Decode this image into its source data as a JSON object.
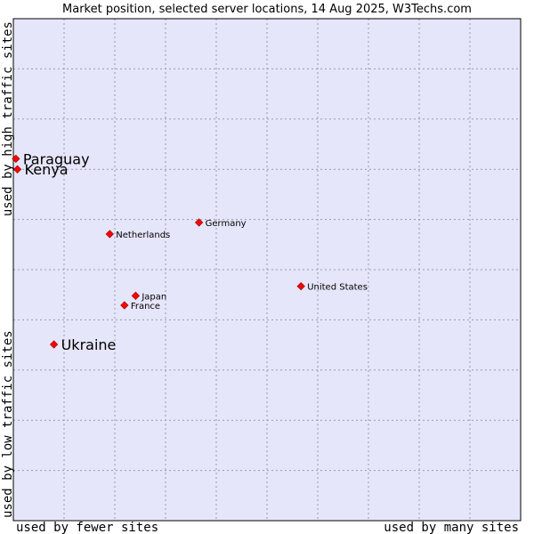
{
  "chart_data": {
    "type": "scatter",
    "title": "Market position, selected server locations, 14 Aug 2025, W3Techs.com",
    "xlabel_left": "used by fewer sites",
    "xlabel_right": "used by many sites",
    "ylabel_bottom": "used by low traffic sites",
    "ylabel_top": "used by high traffic sites",
    "xlim": [
      0,
      100
    ],
    "ylim": [
      0,
      100
    ],
    "grid": true,
    "colors": {
      "plot_background": "#e6e6fa",
      "grid": "#9a9ab0",
      "border": "#000000",
      "point": "#ff0000",
      "point_outline": "#8b0000"
    },
    "points": [
      {
        "name": "Paraguay",
        "x": 0.5,
        "y": 72.1,
        "highlight": true
      },
      {
        "name": "Kenya",
        "x": 0.8,
        "y": 70.0,
        "highlight": true
      },
      {
        "name": "Germany",
        "x": 36.6,
        "y": 59.4,
        "highlight": false
      },
      {
        "name": "Netherlands",
        "x": 19.0,
        "y": 57.1,
        "highlight": false
      },
      {
        "name": "United States",
        "x": 56.7,
        "y": 46.7,
        "highlight": false
      },
      {
        "name": "Japan",
        "x": 24.1,
        "y": 44.8,
        "highlight": false
      },
      {
        "name": "France",
        "x": 21.9,
        "y": 42.9,
        "highlight": false
      },
      {
        "name": "Ukraine",
        "x": 8.0,
        "y": 35.1,
        "highlight": true
      }
    ]
  }
}
